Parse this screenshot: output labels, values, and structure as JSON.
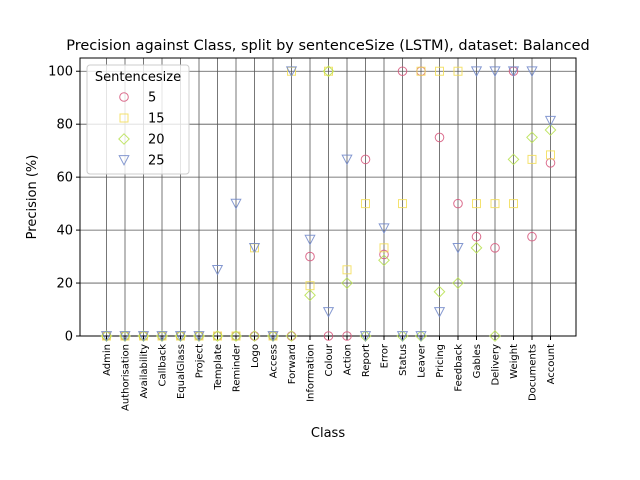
{
  "chart_data": {
    "type": "scatter",
    "title": "Precision against Class, split by sentenceSize (LSTM), dataset: Balanced",
    "xlabel": "Class",
    "ylabel": "Precision (%)",
    "ylim": [
      0,
      105
    ],
    "yticks": [
      0,
      20,
      40,
      60,
      80,
      100
    ],
    "grid": true,
    "legend_position": "upper-left",
    "legend_title": "Sentencesize",
    "categories": [
      "Admin",
      "Authorisation",
      "Availability",
      "Callback",
      "EqualGlass",
      "Project",
      "Template",
      "Reminder",
      "Logo",
      "Access",
      "Forward",
      "Information",
      "Colour",
      "Action",
      "Report",
      "Error",
      "Status",
      "Leaver",
      "Pricing",
      "Feedback",
      "Gables",
      "Delivery",
      "Weight",
      "Documents",
      "Account"
    ],
    "series": [
      {
        "name": "5",
        "marker": "circle",
        "color": "#d6557a",
        "values": [
          0,
          0,
          0,
          0,
          0,
          0,
          0,
          0,
          0,
          0,
          0,
          30,
          0,
          0,
          66.7,
          30.8,
          100,
          100,
          75,
          50,
          37.5,
          33.3,
          100,
          37.5,
          65.4
        ]
      },
      {
        "name": "15",
        "marker": "square",
        "color": "#f2dd55",
        "values": [
          0,
          0,
          0,
          0,
          0,
          0,
          0,
          0,
          33.3,
          0,
          100,
          19,
          100,
          25,
          50,
          33.3,
          50,
          100,
          100,
          100,
          50,
          50,
          50,
          66.7,
          68.4
        ]
      },
      {
        "name": "20",
        "marker": "diamond",
        "color": "#b6e04c",
        "values": [
          0,
          0,
          0,
          0,
          0,
          0,
          0,
          0,
          0,
          0,
          0,
          15.4,
          100,
          20,
          0,
          28.6,
          0,
          0,
          16.7,
          20,
          33.3,
          0,
          66.7,
          75,
          77.8
        ]
      },
      {
        "name": "25",
        "marker": "triangle-down",
        "color": "#6f86c8",
        "values": [
          0,
          0,
          0,
          0,
          0,
          0,
          25,
          50,
          33.3,
          0,
          100,
          36.4,
          9.1,
          66.7,
          0,
          40.7,
          0,
          0,
          9.1,
          33.3,
          100,
          100,
          100,
          100,
          81.3
        ]
      }
    ]
  }
}
